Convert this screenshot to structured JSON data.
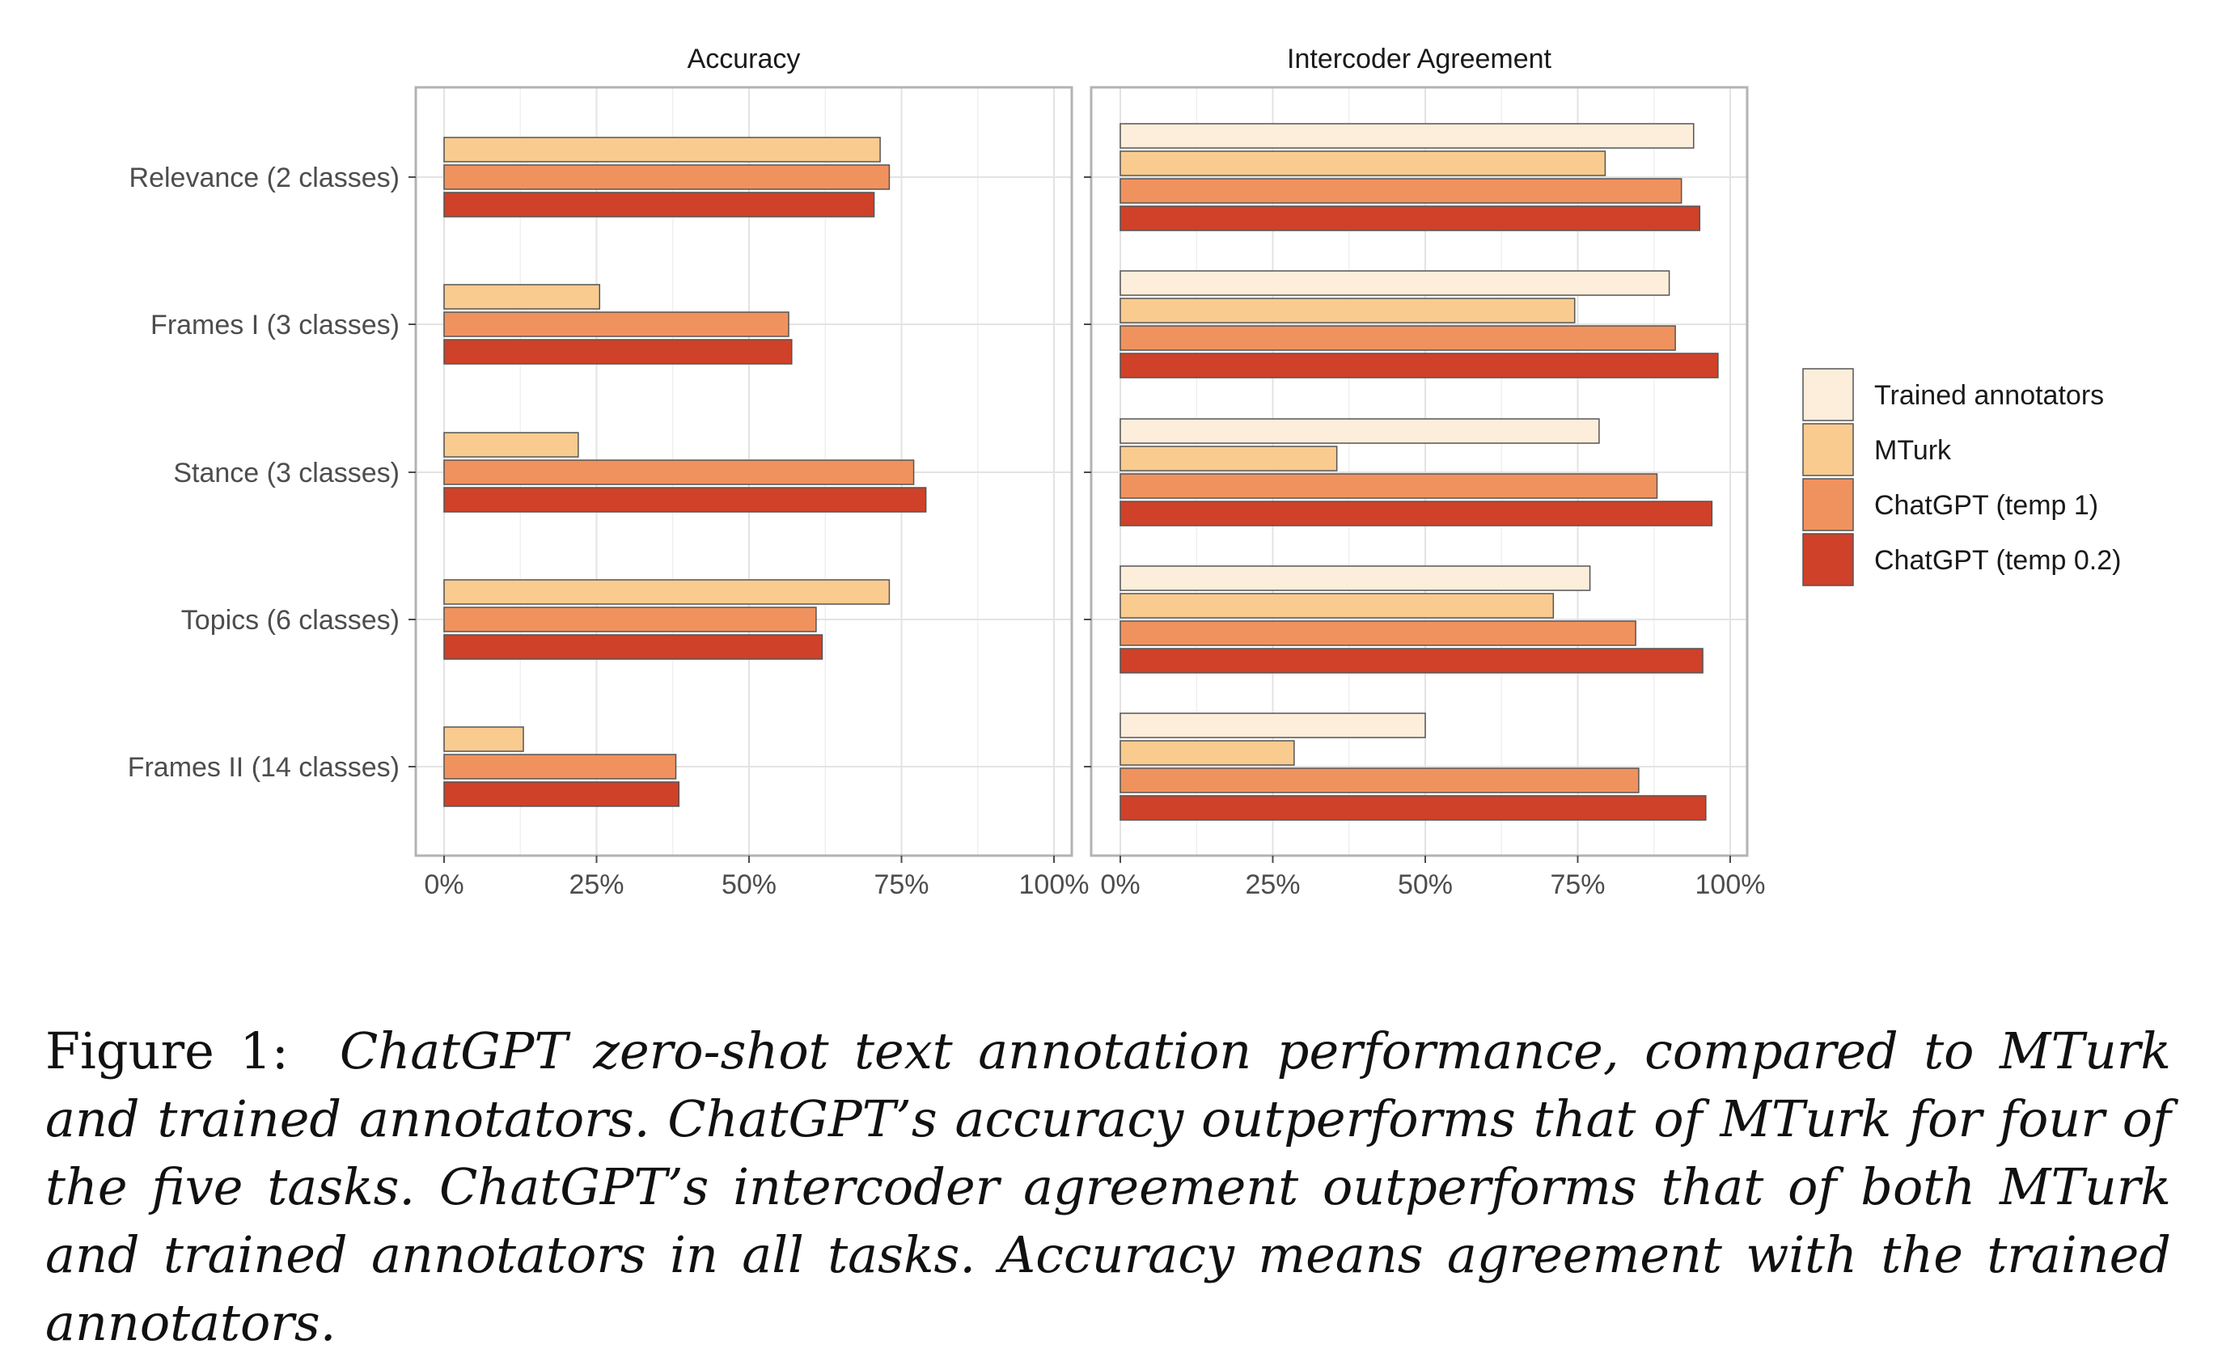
{
  "chart_data": [
    {
      "type": "bar",
      "orientation": "horizontal",
      "title": "Accuracy",
      "categories": [
        "Relevance (2 classes)",
        "Frames I (3 classes)",
        "Stance (3 classes)",
        "Topics (6 classes)",
        "Frames II (14 classes)"
      ],
      "xlim": [
        0,
        100
      ],
      "ticks": [
        "0%",
        "25%",
        "50%",
        "75%",
        "100%"
      ],
      "series": [
        {
          "name": "MTurk",
          "values": [
            71.5,
            25.5,
            22,
            73,
            13
          ]
        },
        {
          "name": "ChatGPT (temp 1)",
          "values": [
            73,
            56.5,
            77,
            61,
            38
          ]
        },
        {
          "name": "ChatGPT (temp 0.2)",
          "values": [
            70.5,
            57,
            79,
            62,
            38.5
          ]
        }
      ]
    },
    {
      "type": "bar",
      "orientation": "horizontal",
      "title": "Intercoder Agreement",
      "categories": [
        "Relevance (2 classes)",
        "Frames I (3 classes)",
        "Stance (3 classes)",
        "Topics (6 classes)",
        "Frames II (14 classes)"
      ],
      "xlim": [
        0,
        100
      ],
      "ticks": [
        "0%",
        "25%",
        "50%",
        "75%",
        "100%"
      ],
      "series": [
        {
          "name": "Trained annotators",
          "values": [
            94,
            90,
            78.5,
            77,
            50
          ]
        },
        {
          "name": "MTurk",
          "values": [
            79.5,
            74.5,
            35.5,
            71,
            28.5
          ]
        },
        {
          "name": "ChatGPT (temp 1)",
          "values": [
            92,
            91,
            88,
            84.5,
            85
          ]
        },
        {
          "name": "ChatGPT (temp 0.2)",
          "values": [
            95,
            98,
            97,
            95.5,
            96
          ]
        }
      ]
    }
  ],
  "legend": {
    "position": "right",
    "items": [
      {
        "name": "Trained annotators",
        "color": "#FDEEDB"
      },
      {
        "name": "MTurk",
        "color": "#F9CB8F"
      },
      {
        "name": "ChatGPT (temp 1)",
        "color": "#F0925D"
      },
      {
        "name": "ChatGPT (temp 0.2)",
        "color": "#CF4128"
      }
    ]
  },
  "caption": {
    "prefix": "Figure 1:",
    "text": "ChatGPT zero-shot text annotation performance, compared to MTurk and trained annotators. ChatGPT’s accuracy outperforms that of MTurk for four of the five tasks. ChatGPT’s intercoder agreement outperforms that of both MTurk and trained annotators in all tasks. Accuracy means agreement with the trained annotators."
  }
}
